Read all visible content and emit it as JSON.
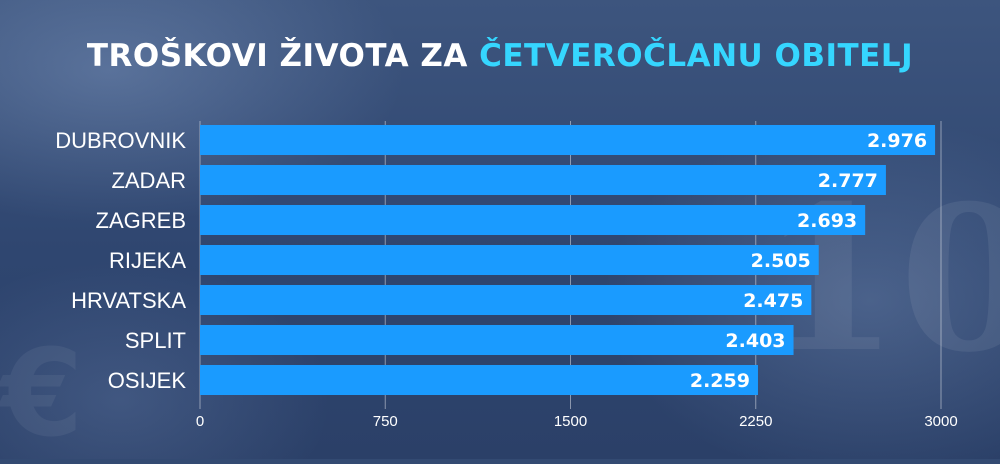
{
  "title": {
    "part1": "TROŠKOVI ŽIVOTA ZA ",
    "part2": "ČETVEROČLANU OBITELJ"
  },
  "colors": {
    "bar": "#1a9bff",
    "title_accent": "#35d6ff",
    "text": "#ffffff"
  },
  "chart_data": {
    "type": "bar",
    "orientation": "horizontal",
    "title": "TROŠKOVI ŽIVOTA ZA ČETVEROČLANU OBITELJ",
    "categories": [
      "DUBROVNIK",
      "ZADAR",
      "ZAGREB",
      "RIJEKA",
      "HRVATSKA",
      "SPLIT",
      "OSIJEK"
    ],
    "values": [
      2976,
      2777,
      2693,
      2505,
      2475,
      2403,
      2259
    ],
    "value_labels": [
      "2.976",
      "2.777",
      "2.693",
      "2.505",
      "2.475",
      "2.403",
      "2.259"
    ],
    "xlim": [
      0,
      3000
    ],
    "ticks": [
      0,
      750,
      1500,
      2250,
      3000
    ],
    "tick_labels": [
      "0",
      "750",
      "1500",
      "2250",
      "3000"
    ],
    "grid": true,
    "legend": "none"
  }
}
